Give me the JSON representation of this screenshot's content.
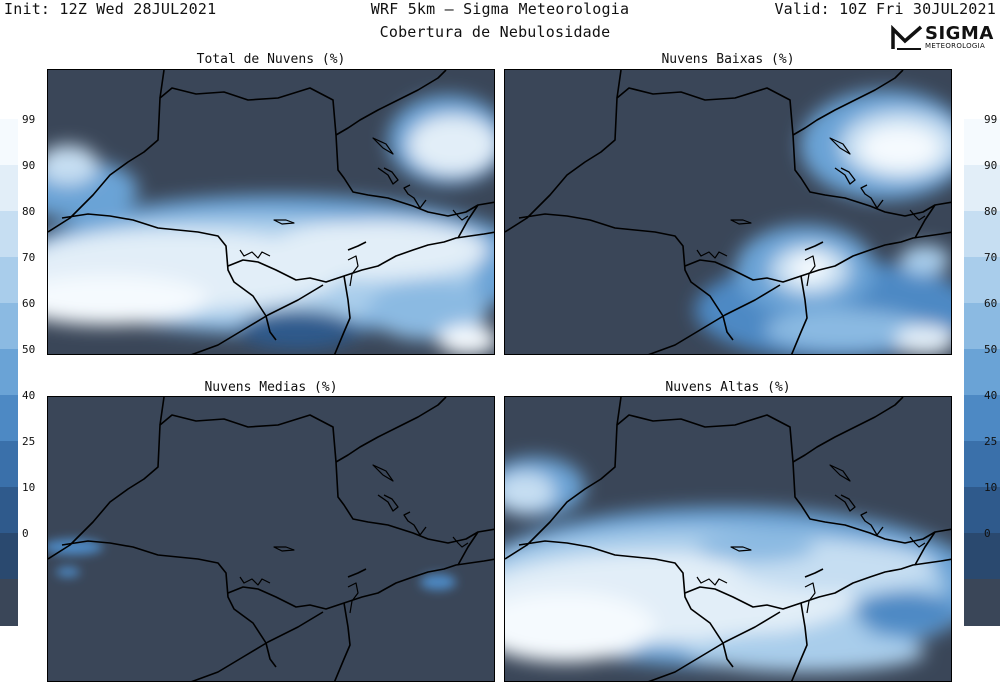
{
  "header": {
    "init": "Init: 12Z Wed 28JUL2021",
    "title": "WRF 5km – Sigma Meteorologia",
    "valid": "Valid: 10Z Fri 30JUL2021",
    "subtitle": "Cobertura de Nebulosidade"
  },
  "logo": {
    "name": "SIGMA",
    "sub": "METEOROLOGIA"
  },
  "panels": [
    {
      "title": "Total de Nuvens (%)"
    },
    {
      "title": "Nuvens Baixas (%)"
    },
    {
      "title": "Nuvens Medias (%)"
    },
    {
      "title": "Nuvens Altas (%)"
    }
  ],
  "colorbar": {
    "ticks": [
      "99",
      "90",
      "80",
      "70",
      "60",
      "50",
      "40",
      "25",
      "10",
      "0"
    ],
    "colors": [
      "#f5fafe",
      "#e2eef8",
      "#c6def2",
      "#a9cdeb",
      "#8bbae2",
      "#6aa3d6",
      "#4d89c4",
      "#3a70aa",
      "#2f5a8c",
      "#2a496f",
      "#3a4658"
    ]
  }
}
